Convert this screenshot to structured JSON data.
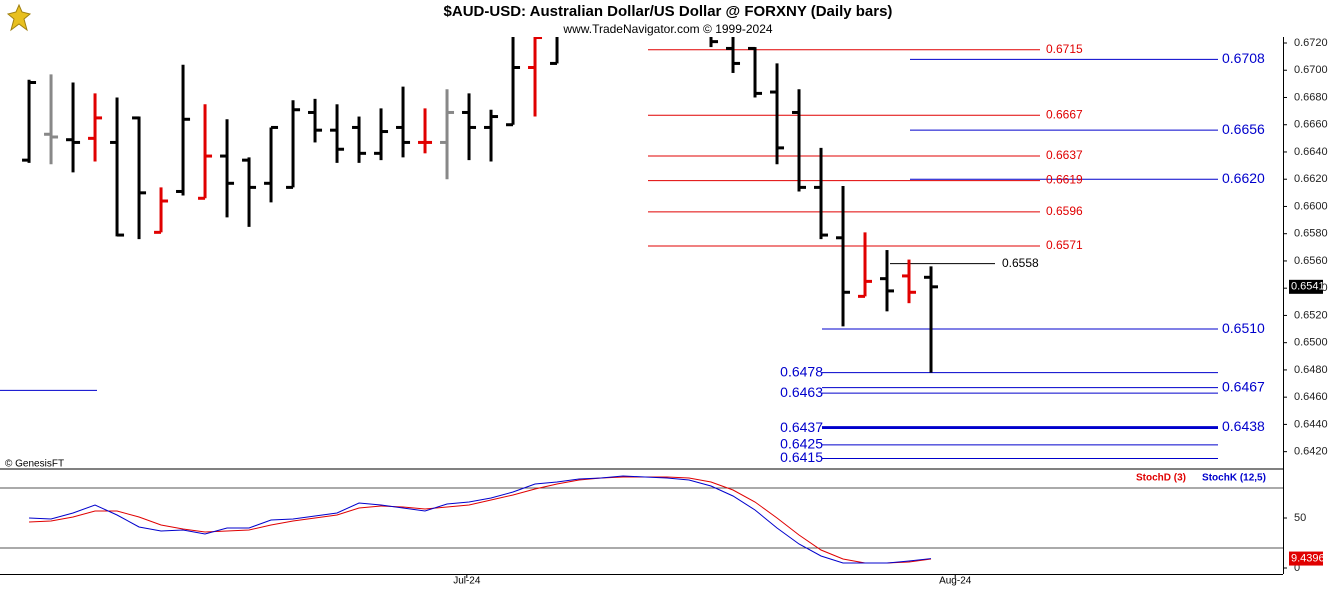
{
  "chart_data": [
    {
      "type": "ohlc",
      "title": "$AUD-USD:  Australian Dollar/US Dollar @ FORXNY  (Daily bars)",
      "subtitle": "www.TradeNavigator.com © 1999-2024",
      "watermark": "© GenesisFT",
      "x": [
        0,
        1,
        2,
        3,
        4,
        5,
        6,
        7,
        8,
        9,
        10,
        11,
        12,
        13,
        14,
        15,
        16,
        17,
        18,
        19,
        20,
        21,
        22,
        23,
        24,
        31,
        32,
        33,
        34,
        35,
        36,
        37,
        38,
        39,
        40,
        41
      ],
      "open": [
        0.6634,
        0.6653,
        0.6649,
        0.665,
        0.6647,
        0.6665,
        0.6581,
        0.6611,
        0.6606,
        0.6637,
        0.6634,
        0.6617,
        0.6614,
        0.6669,
        0.6656,
        0.6658,
        0.6639,
        0.6658,
        0.6647,
        0.6647,
        0.6669,
        0.6658,
        0.666,
        0.6702,
        0.6705,
        0.6728,
        0.6716,
        0.6716,
        0.6684,
        0.6669,
        0.6614,
        0.6577,
        0.6534,
        0.6547,
        0.6549,
        0.6548
      ],
      "high": [
        0.6693,
        0.6697,
        0.6691,
        0.6683,
        0.668,
        0.6666,
        0.6614,
        0.6704,
        0.6675,
        0.6664,
        0.6636,
        0.6658,
        0.6678,
        0.6679,
        0.6675,
        0.6666,
        0.6672,
        0.6688,
        0.6672,
        0.6686,
        0.6683,
        0.6671,
        0.6735,
        0.674,
        0.6745,
        0.6735,
        0.673,
        0.6717,
        0.6705,
        0.6686,
        0.6643,
        0.6615,
        0.6581,
        0.6568,
        0.6561,
        0.6556
      ],
      "low": [
        0.6632,
        0.6631,
        0.6625,
        0.6633,
        0.6578,
        0.6576,
        0.6581,
        0.6608,
        0.6606,
        0.6592,
        0.6585,
        0.6603,
        0.6614,
        0.6647,
        0.6632,
        0.6632,
        0.6634,
        0.6636,
        0.6639,
        0.662,
        0.6634,
        0.6633,
        0.666,
        0.6666,
        0.6705,
        0.6717,
        0.6698,
        0.668,
        0.6631,
        0.6611,
        0.6576,
        0.6512,
        0.6534,
        0.6523,
        0.6529,
        0.6478
      ],
      "close": [
        0.6691,
        0.6651,
        0.6647,
        0.6665,
        0.6579,
        0.661,
        0.6604,
        0.6664,
        0.6637,
        0.6617,
        0.6614,
        0.6658,
        0.6671,
        0.6656,
        0.6642,
        0.6639,
        0.6655,
        0.6647,
        0.6647,
        0.6669,
        0.6658,
        0.6666,
        0.6702,
        0.6724,
        0.6735,
        0.6721,
        0.6705,
        0.6683,
        0.6643,
        0.6614,
        0.6579,
        0.6537,
        0.6545,
        0.6538,
        0.6537,
        0.6541
      ],
      "colors": [
        "#000000",
        "#888888",
        "#000000",
        "#e00000",
        "#000000",
        "#000000",
        "#e00000",
        "#000000",
        "#e00000",
        "#000000",
        "#000000",
        "#000000",
        "#000000",
        "#000000",
        "#000000",
        "#000000",
        "#000000",
        "#000000",
        "#e00000",
        "#888888",
        "#000000",
        "#000000",
        "#000000",
        "#e00000",
        "#000000",
        "#000000",
        "#000000",
        "#000000",
        "#000000",
        "#000000",
        "#000000",
        "#000000",
        "#e00000",
        "#000000",
        "#e00000",
        "#000000"
      ],
      "levels": [
        {
          "value": 0.6715,
          "label": "0.6715",
          "color": "#e00000"
        },
        {
          "value": 0.6667,
          "label": "0.6667",
          "color": "#e00000"
        },
        {
          "value": 0.6637,
          "label": "0.6637",
          "color": "#e00000"
        },
        {
          "value": 0.6619,
          "label": "0.6619",
          "color": "#e00000"
        },
        {
          "value": 0.6596,
          "label": "0.6596",
          "color": "#e00000"
        },
        {
          "value": 0.6571,
          "label": "0.6571",
          "color": "#e00000"
        },
        {
          "value": 0.6558,
          "label": "0.6558",
          "color": "#000000"
        },
        {
          "value": 0.6708,
          "label": "0.6708",
          "color": "#0000cc"
        },
        {
          "value": 0.6656,
          "label": "0.6656",
          "color": "#0000cc"
        },
        {
          "value": 0.662,
          "label": "0.6620",
          "color": "#0000cc"
        },
        {
          "value": 0.651,
          "label": "0.6510",
          "color": "#0000cc"
        },
        {
          "value": 0.6478,
          "label": "0.6478",
          "color": "#0000cc"
        },
        {
          "value": 0.6467,
          "label": "0.6467",
          "color": "#0000cc"
        },
        {
          "value": 0.6463,
          "label": "0.6463",
          "color": "#0000cc"
        },
        {
          "value": 0.6438,
          "label": "0.6438",
          "color": "#0000cc"
        },
        {
          "value": 0.6437,
          "label": "0.6437",
          "color": "#0000cc"
        },
        {
          "value": 0.6425,
          "label": "0.6425",
          "color": "#0000cc"
        },
        {
          "value": 0.6415,
          "label": "0.6415",
          "color": "#0000cc"
        },
        {
          "value": 0.6465,
          "color": "#0000cc"
        }
      ],
      "xlim": [
        -1.32,
        57
      ],
      "ylim": [
        0.6408,
        0.67244
      ],
      "yticks": [
        {
          "value": 0.642,
          "label": "0.6420"
        },
        {
          "value": 0.644,
          "label": "0.6440"
        },
        {
          "value": 0.646,
          "label": "0.6460"
        },
        {
          "value": 0.648,
          "label": "0.6480"
        },
        {
          "value": 0.65,
          "label": "0.6500"
        },
        {
          "value": 0.652,
          "label": "0.6520"
        },
        {
          "value": 0.654,
          "label": "0.6540"
        },
        {
          "value": 0.656,
          "label": "0.6560"
        },
        {
          "value": 0.658,
          "label": "0.6580"
        },
        {
          "value": 0.66,
          "label": "0.6600"
        },
        {
          "value": 0.662,
          "label": "0.6620"
        },
        {
          "value": 0.664,
          "label": "0.6640"
        },
        {
          "value": 0.666,
          "label": "0.6660"
        },
        {
          "value": 0.668,
          "label": "0.6680"
        },
        {
          "value": 0.67,
          "label": "0.6700"
        },
        {
          "value": 0.672,
          "label": "0.6720"
        }
      ]
    },
    {
      "type": "line",
      "x": [
        0,
        1,
        2,
        3,
        4,
        5,
        6,
        7,
        8,
        9,
        10,
        11,
        12,
        13,
        14,
        15,
        16,
        17,
        18,
        19,
        20,
        21,
        22,
        23,
        24,
        25,
        26,
        27,
        28,
        29,
        30,
        31,
        32,
        33,
        34,
        35,
        36,
        37,
        38,
        39,
        40,
        41
      ],
      "series": [
        {
          "name": "StochD (3)",
          "color": "#e00000",
          "values": [
            46,
            47,
            51,
            57,
            57,
            51,
            43,
            39,
            36,
            37,
            38,
            43,
            47,
            50,
            53,
            60,
            62,
            61,
            59,
            61,
            63,
            68,
            73,
            79,
            84,
            88,
            90,
            91,
            91,
            91,
            90,
            86,
            78,
            66,
            50,
            33,
            18,
            9,
            5,
            5,
            6,
            9
          ]
        },
        {
          "name": "StochK (12,5)",
          "color": "#0000cc",
          "values": [
            50,
            49,
            55,
            63,
            53,
            41,
            37,
            38,
            34,
            40,
            40,
            48,
            49,
            52,
            55,
            65,
            63,
            60,
            57,
            64,
            66,
            70,
            76,
            84,
            86,
            89,
            90,
            92,
            91,
            90,
            88,
            82,
            72,
            58,
            40,
            24,
            12,
            5,
            5,
            5,
            7,
            9.4396
          ]
        }
      ],
      "hlines": [
        80,
        20
      ],
      "xlim": [
        -1.32,
        57
      ],
      "ylim": [
        -6,
        98
      ],
      "yticks": [
        0,
        50
      ],
      "xticks": [
        {
          "value": 19.9,
          "label": "Jul-24"
        },
        {
          "value": 42.1,
          "label": "Aug-24"
        }
      ]
    }
  ]
}
